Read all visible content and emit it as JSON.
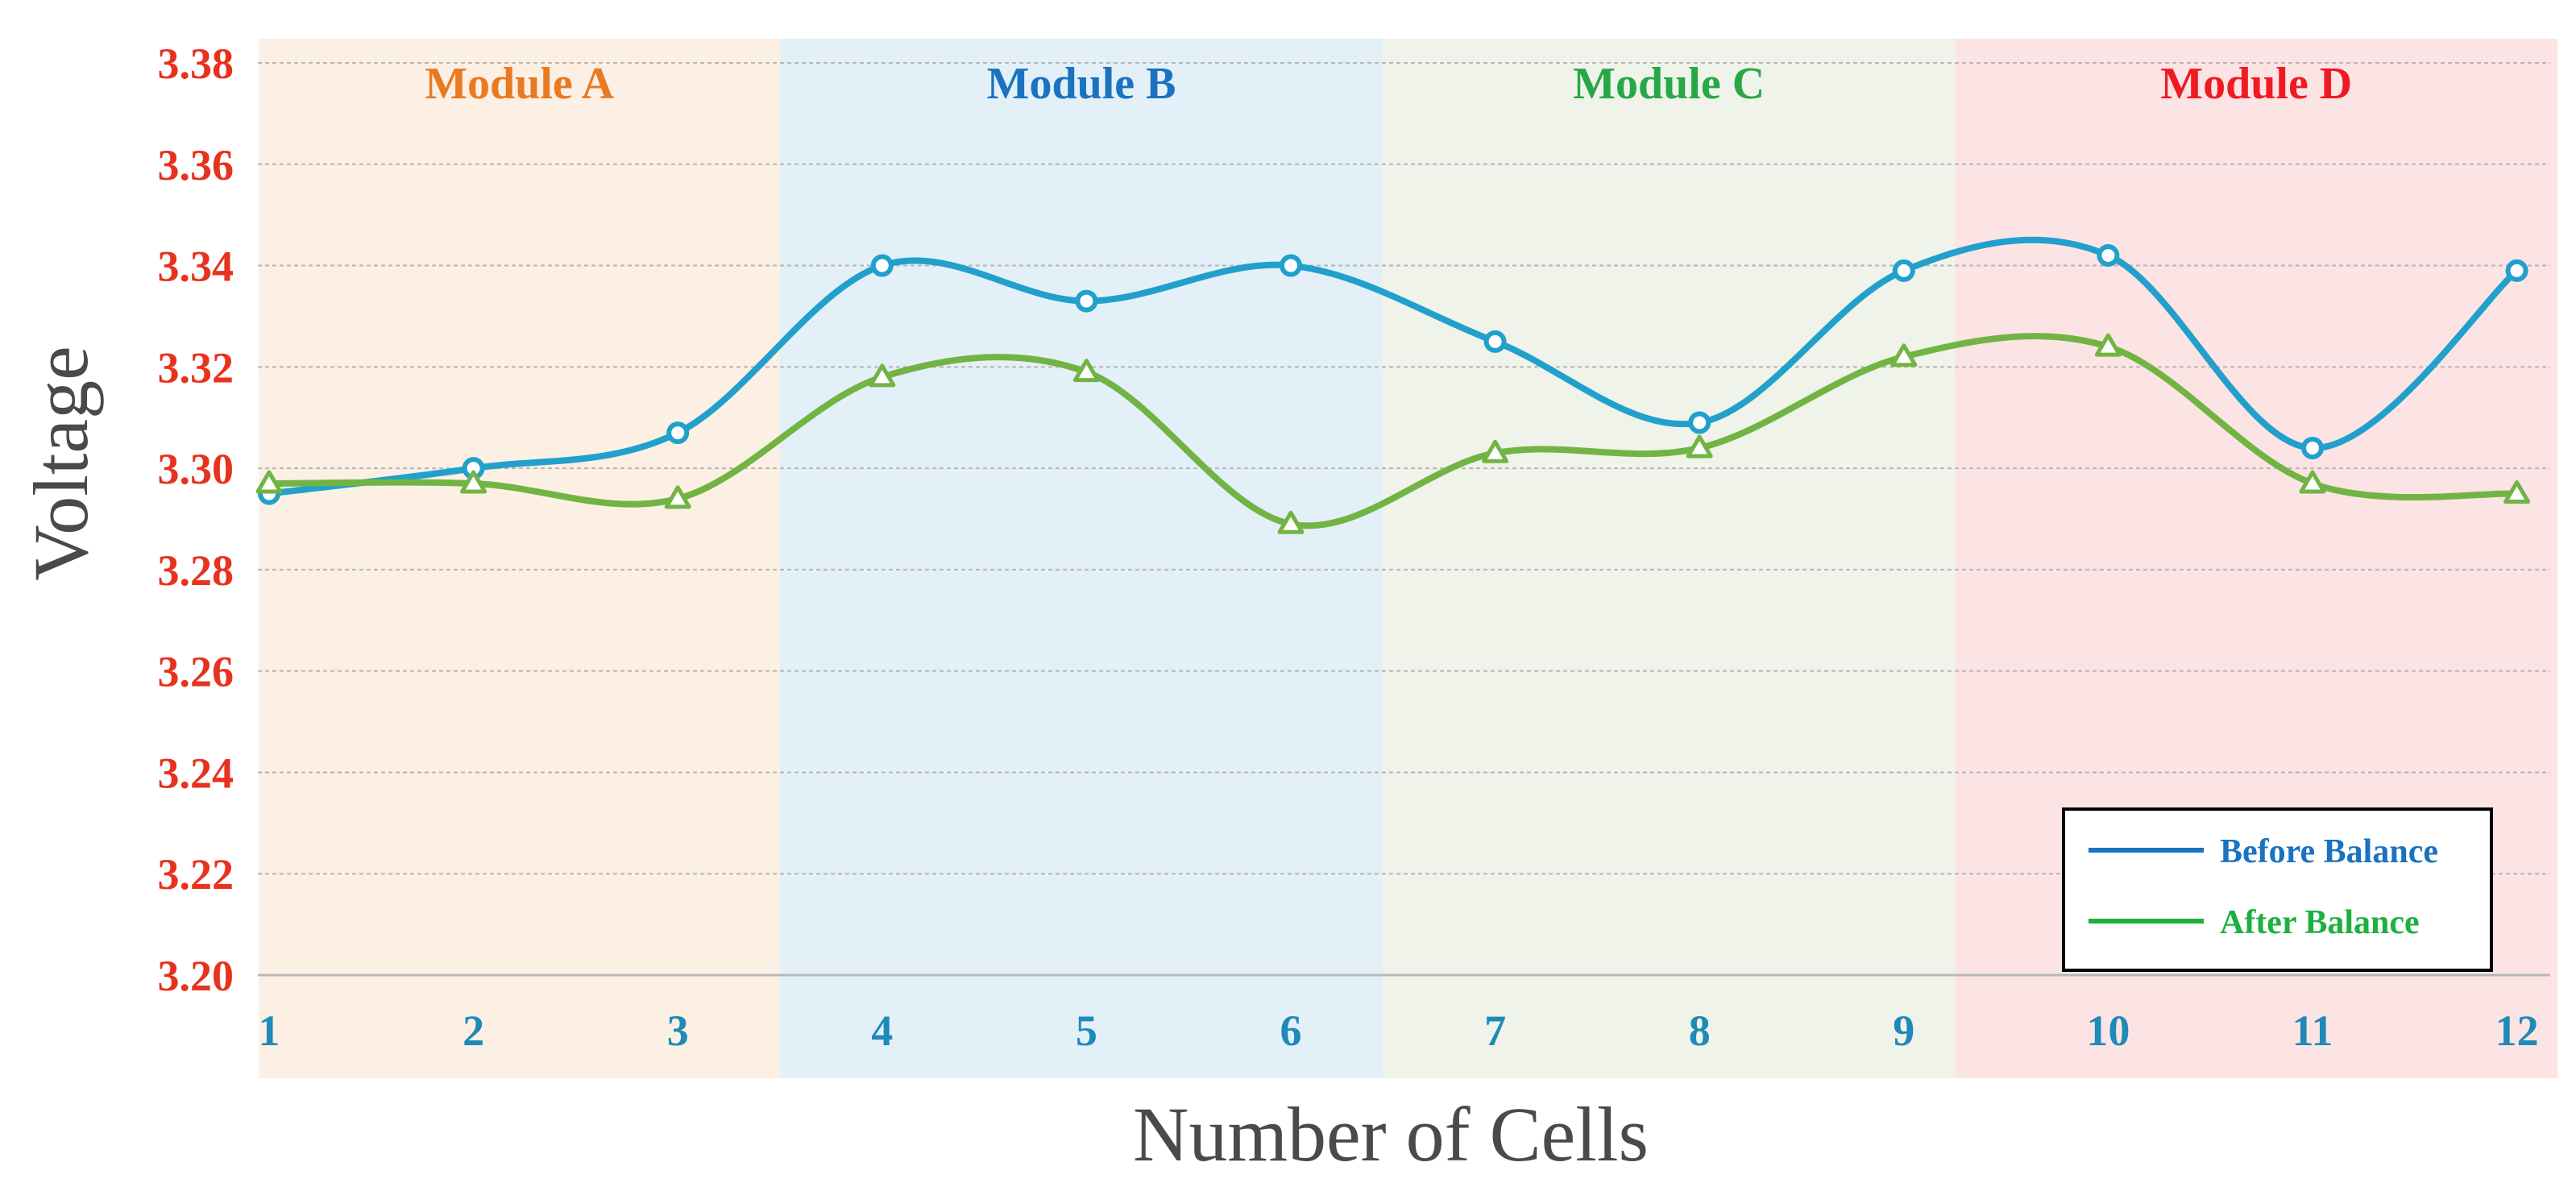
{
  "chart_data": {
    "type": "line",
    "title": "",
    "xlabel": "Number of Cells",
    "ylabel": "Voltage",
    "x": [
      1,
      2,
      3,
      4,
      5,
      6,
      7,
      8,
      9,
      10,
      11,
      12
    ],
    "x_tick_labels": [
      "1",
      "2",
      "3",
      "4",
      "5",
      "6",
      "7",
      "8",
      "9",
      "10",
      "11",
      "12"
    ],
    "ylim": [
      3.2,
      3.38
    ],
    "y_tick_labels": [
      "3.20",
      "3.22",
      "3.24",
      "3.26",
      "3.28",
      "3.30",
      "3.32",
      "3.34",
      "3.36",
      "3.38"
    ],
    "y_ticks": [
      3.2,
      3.22,
      3.24,
      3.26,
      3.28,
      3.3,
      3.32,
      3.34,
      3.36,
      3.38
    ],
    "grid": true,
    "legend_position": "bottom-right",
    "series": [
      {
        "name": "Before Balance",
        "marker": "circle",
        "line_color": "#22a0cc",
        "legend_color": "#1a72c0",
        "values": [
          3.295,
          3.3,
          3.307,
          3.34,
          3.333,
          3.34,
          3.325,
          3.309,
          3.339,
          3.342,
          3.304,
          3.339
        ]
      },
      {
        "name": "After Balance",
        "marker": "triangle",
        "line_color": "#72b444",
        "legend_color": "#1db040",
        "values": [
          3.297,
          3.297,
          3.294,
          3.318,
          3.319,
          3.289,
          3.303,
          3.304,
          3.322,
          3.324,
          3.297,
          3.295
        ]
      }
    ],
    "regions": [
      {
        "label": "Module A",
        "x_start": 0.95,
        "x_end": 3.5,
        "fill": "#fcefe4",
        "text_color": "#e87a22"
      },
      {
        "label": "Module B",
        "x_start": 3.5,
        "x_end": 6.45,
        "fill": "#e4f0f8",
        "text_color": "#1a72c0"
      },
      {
        "label": "Module C",
        "x_start": 6.45,
        "x_end": 9.25,
        "fill": "#f0f3ea",
        "text_color": "#28a844"
      },
      {
        "label": "Module D",
        "x_start": 9.25,
        "x_end": 12.2,
        "fill": "#fce4e4",
        "text_color": "#ee1b24"
      }
    ],
    "y_tick_color": "#e8321e",
    "x_tick_color": "#1e8ab8"
  }
}
